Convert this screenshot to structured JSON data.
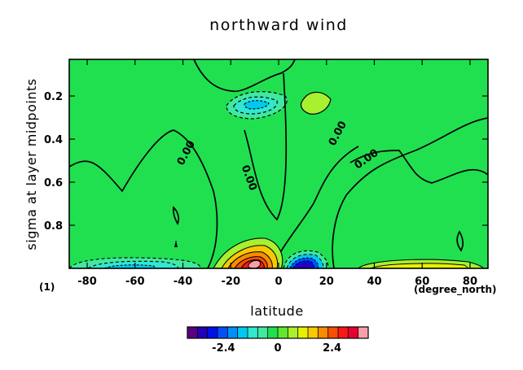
{
  "chart_data": {
    "type": "heatmap",
    "title": "northward wind",
    "xlabel": "latitude",
    "ylabel": "sigma at layer midpoints",
    "x_units": "(degree_north)",
    "y_units_note": "(1)",
    "xlim": [
      -87.5,
      87.5
    ],
    "ylim": [
      1.0,
      0.03
    ],
    "x_ticks": [
      -80,
      -60,
      -40,
      -20,
      0,
      20,
      40,
      60,
      80
    ],
    "y_ticks": [
      0.2,
      0.4,
      0.6,
      0.8
    ],
    "contour_labels": [
      "0.00",
      "0.00",
      "0.00",
      "0.00"
    ],
    "colorbar": {
      "tick_labels": [
        "-2.4",
        "0",
        "2.4"
      ],
      "tick_values": [
        -2.4,
        0,
        2.4
      ],
      "range": [
        -4.0,
        4.0
      ],
      "colors": [
        "#5a0080",
        "#2400b8",
        "#0010e8",
        "#0050f8",
        "#0090f8",
        "#00c8f0",
        "#30e8d0",
        "#40e8a0",
        "#20e050",
        "#60e830",
        "#a8f030",
        "#e8f000",
        "#f8c800",
        "#f88c00",
        "#f85000",
        "#f81818",
        "#e80030",
        "#f8a0a8"
      ]
    },
    "background_color": "#20e050",
    "features": [
      {
        "kind": "min",
        "x": -10,
        "y": 0.23,
        "value": -1.0
      },
      {
        "kind": "max",
        "x": 13,
        "y": 0.23,
        "value": 0.6
      },
      {
        "kind": "max",
        "x": -8,
        "y": 0.96,
        "value": 3.6
      },
      {
        "kind": "min",
        "x": 10,
        "y": 0.96,
        "value": -3.2
      },
      {
        "kind": "min",
        "x": -60,
        "y": 0.985,
        "value": -1.6
      },
      {
        "kind": "max",
        "x": 62,
        "y": 0.985,
        "value": 1.6
      }
    ]
  }
}
